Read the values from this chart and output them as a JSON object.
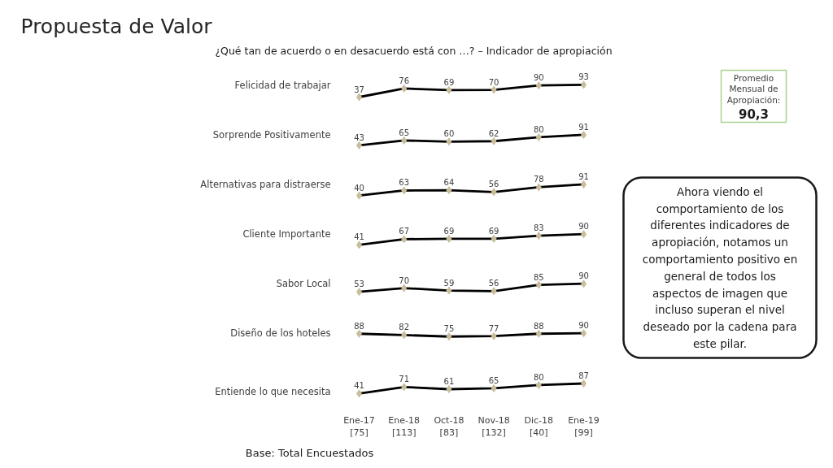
{
  "chart_data": [
    {
      "type": "line",
      "subtitle": "¿Qué tan de acuerdo o en desacuerdo está con …? – Indicador de apropiación",
      "annotations": [
        "Propuesta de Valor"
      ],
      "categories": [
        null,
        null,
        null,
        null,
        null,
        null
      ],
      "series": [
        {
          "name": "Felicidad de trabajar",
          "color": "#000000",
          "values": [
            37,
            76,
            69,
            70,
            90,
            93
          ]
        }
      ],
      "data_labels": true,
      "marker": "diamond",
      "tick_labels": false
    },
    {
      "type": "line",
      "categories": [
        null,
        null,
        null,
        null,
        null,
        null
      ],
      "series": [
        {
          "name": "Sorprende Positivamente",
          "color": "#000000",
          "values": [
            43,
            65,
            60,
            62,
            80,
            91
          ]
        }
      ],
      "data_labels": true,
      "marker": "diamond",
      "tick_labels": false
    },
    {
      "type": "line",
      "categories": [
        null,
        null,
        null,
        null,
        null,
        null
      ],
      "series": [
        {
          "name": "Alternativas para distraerse",
          "color": "#000000",
          "values": [
            40,
            63,
            64,
            56,
            78,
            91
          ]
        }
      ],
      "data_labels": true,
      "marker": "diamond",
      "tick_labels": false
    },
    {
      "type": "line",
      "categories": [
        null,
        null,
        null,
        null,
        null,
        null
      ],
      "series": [
        {
          "name": "Cliente Importante",
          "color": "#000000",
          "values": [
            41,
            67,
            69,
            69,
            83,
            90
          ]
        }
      ],
      "data_labels": true,
      "marker": "diamond",
      "tick_labels": false
    },
    {
      "type": "line",
      "categories": [
        null,
        null,
        null,
        null,
        null,
        null
      ],
      "series": [
        {
          "name": "Sabor Local",
          "color": "#000000",
          "values": [
            53,
            70,
            59,
            56,
            85,
            90
          ]
        }
      ],
      "data_labels": true,
      "marker": "diamond",
      "tick_labels": false
    },
    {
      "type": "line",
      "categories": [
        null,
        null,
        null,
        null,
        null,
        null
      ],
      "series": [
        {
          "name": "Diseño de los hoteles",
          "color": "#000000",
          "values": [
            88,
            82,
            75,
            77,
            88,
            90
          ]
        }
      ],
      "data_labels": true,
      "marker": "diamond",
      "tick_labels": false
    },
    {
      "type": "line",
      "categories": [
        "Ene-17\n[75]",
        "Ene-18\n[113]",
        "Oct-18\n[83]",
        "Nov-18\n[132]",
        "Dic-18\n[40]",
        "Ene-19\n[99]"
      ],
      "series": [
        {
          "name": "Entiende lo que necesita",
          "color": "#000000",
          "values": [
            41,
            71,
            61,
            65,
            80,
            87
          ]
        }
      ],
      "data_labels": true,
      "marker": "diamond",
      "tick_labels": "x",
      "annotations": [
        "Base: Total Encuestados"
      ]
    },
    {
      "type": "other",
      "annotations": [
        "Promedio Mensual de Apropiación:",
        "90,3",
        "Ahora viendo el comportamiento de los diferentes indicadores de apropiación, notamos un comportamiento positivo en general de todos los aspectos de imagen que incluso superan el nivel deseado por la cadena para este pilar."
      ]
    }
  ]
}
